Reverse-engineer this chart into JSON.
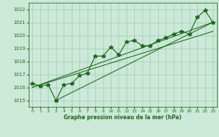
{
  "x": [
    0,
    1,
    2,
    3,
    4,
    5,
    6,
    7,
    8,
    9,
    10,
    11,
    12,
    13,
    14,
    15,
    16,
    17,
    18,
    19,
    20,
    21,
    22,
    23
  ],
  "y": [
    1016.3,
    1016.1,
    1016.2,
    1015.0,
    1016.2,
    1016.3,
    1016.9,
    1017.1,
    1018.4,
    1018.4,
    1019.1,
    1018.5,
    1019.5,
    1019.6,
    1019.2,
    1019.2,
    1019.6,
    1019.8,
    1020.1,
    1020.3,
    1020.1,
    1021.4,
    1021.9,
    1021.0
  ],
  "trend_lines": [
    {
      "x": [
        0,
        23
      ],
      "y": [
        1016.0,
        1021.0
      ]
    },
    {
      "x": [
        0,
        23
      ],
      "y": [
        1016.0,
        1020.3
      ]
    },
    {
      "x": [
        3,
        23
      ],
      "y": [
        1015.0,
        1021.0
      ]
    }
  ],
  "ylim": [
    1014.5,
    1022.5
  ],
  "yticks": [
    1015,
    1016,
    1017,
    1018,
    1019,
    1020,
    1021,
    1022
  ],
  "xlim": [
    -0.5,
    23.5
  ],
  "xticks": [
    0,
    1,
    2,
    3,
    4,
    5,
    6,
    7,
    8,
    9,
    10,
    11,
    12,
    13,
    14,
    15,
    16,
    17,
    18,
    19,
    20,
    21,
    22,
    23
  ],
  "xlabel": "Graphe pression niveau de la mer (hPa)",
  "line_color": "#1a6b1a",
  "bg_color": "#cce8d8",
  "grid_color": "#a0c8b0",
  "text_color": "#1a6b1a",
  "marker": "*",
  "marker_size": 4,
  "linewidth": 0.9,
  "trend_linewidth": 0.8
}
